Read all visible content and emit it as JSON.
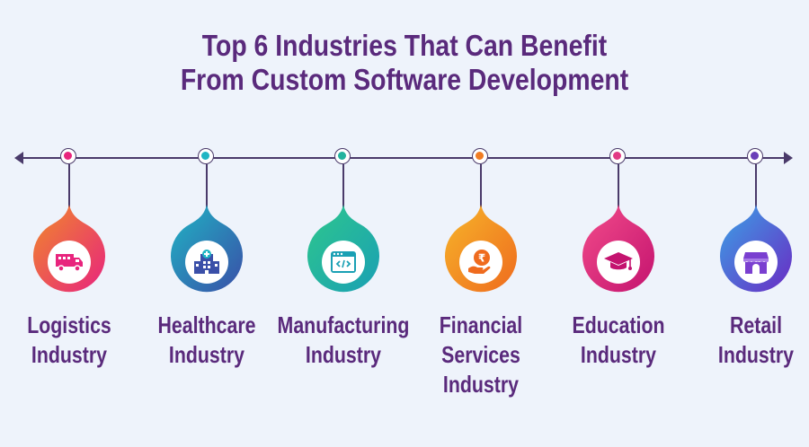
{
  "title": {
    "line1": "Top 6 Industries That Can Benefit",
    "line2": "From Custom Software Development"
  },
  "industries": [
    {
      "label_lines": [
        "Logistics",
        "Industry"
      ],
      "icon": "truck-icon",
      "colors": [
        "#f08a2a",
        "#e8247d"
      ],
      "dot": "#e8247d"
    },
    {
      "label_lines": [
        "Healthcare",
        "Industry"
      ],
      "icon": "hospital-icon",
      "colors": [
        "#1fb5c4",
        "#3a4fa8"
      ],
      "dot": "#1fb5c4"
    },
    {
      "label_lines": [
        "Manufacturing",
        "Industry"
      ],
      "icon": "code-window-icon",
      "colors": [
        "#2ec78c",
        "#1aa0b4"
      ],
      "dot": "#22b39e"
    },
    {
      "label_lines": [
        "Financial",
        "Services",
        "Industry"
      ],
      "icon": "rupee-hand-icon",
      "colors": [
        "#f6b52a",
        "#ef6b1e"
      ],
      "dot": "#f07c22"
    },
    {
      "label_lines": [
        "Education",
        "Industry"
      ],
      "icon": "graduation-cap-icon",
      "colors": [
        "#f24c8a",
        "#c4136f"
      ],
      "dot": "#e23a85"
    },
    {
      "label_lines": [
        "Retail",
        "Industry"
      ],
      "icon": "store-icon",
      "colors": [
        "#3aa3e6",
        "#6a2bc4"
      ],
      "dot": "#6b3fb8"
    }
  ]
}
